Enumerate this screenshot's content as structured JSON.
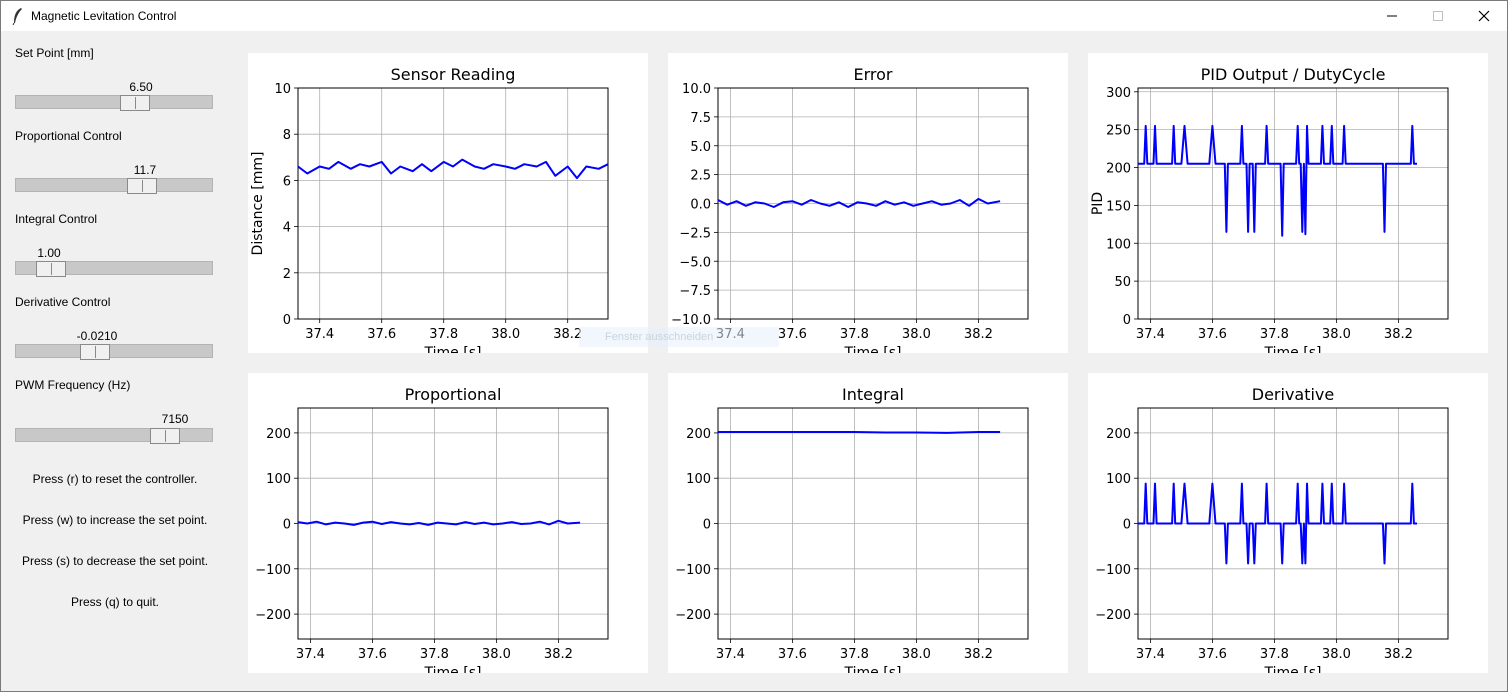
{
  "window": {
    "title": "Magnetic Levitation Control",
    "app_icon": "feather-icon",
    "controls": [
      "minimize-icon",
      "maximize-icon",
      "close-icon"
    ]
  },
  "sliders": [
    {
      "label": "Set Point [mm]",
      "value": "6.50",
      "fraction": 0.62
    },
    {
      "label": "Proportional Control",
      "value": "11.7",
      "fraction": 0.66
    },
    {
      "label": "Integral Control",
      "value": "1.00",
      "fraction": 0.12
    },
    {
      "label": "Derivative Control",
      "value": "-0.0210",
      "fraction": 0.38
    },
    {
      "label": "PWM Frequency (Hz)",
      "value": "7150",
      "fraction": 0.8
    }
  ],
  "hints": [
    "Press (r) to reset the controller.",
    "Press (w) to increase the set point.",
    "Press (s) to decrease the set point.",
    "Press (q) to quit."
  ],
  "tooltip": "Fenster ausschneiden",
  "colors": {
    "line": "#0000ff",
    "grid": "#b0b0b0",
    "background": "#f0f0f0"
  },
  "chart_data": [
    {
      "type": "line",
      "title": "Sensor Reading",
      "xlabel": "Time [s]",
      "ylabel": "Distance [mm]",
      "xlim": [
        37.33,
        38.33
      ],
      "ylim": [
        0,
        10
      ],
      "xticks": [
        37.4,
        37.6,
        37.8,
        38.0,
        38.2
      ],
      "xtick_labels": [
        "37.4",
        "37.6",
        "37.8",
        "38.0",
        "38.2"
      ],
      "yticks": [
        0,
        2,
        4,
        6,
        8,
        10
      ],
      "ytick_labels": [
        "0",
        "2",
        "4",
        "6",
        "8",
        "10"
      ],
      "grid": true,
      "series": [
        {
          "x": [
            37.33,
            37.36,
            37.4,
            37.43,
            37.46,
            37.5,
            37.53,
            37.56,
            37.6,
            37.63,
            37.66,
            37.7,
            37.73,
            37.76,
            37.8,
            37.83,
            37.86,
            37.9,
            37.93,
            37.96,
            38.0,
            38.03,
            38.06,
            38.1,
            38.13,
            38.16,
            38.2,
            38.23,
            38.26,
            38.3,
            38.33
          ],
          "y": [
            6.6,
            6.3,
            6.6,
            6.5,
            6.8,
            6.5,
            6.7,
            6.6,
            6.8,
            6.3,
            6.6,
            6.4,
            6.7,
            6.4,
            6.8,
            6.6,
            6.9,
            6.6,
            6.5,
            6.7,
            6.6,
            6.5,
            6.7,
            6.6,
            6.8,
            6.2,
            6.6,
            6.1,
            6.6,
            6.5,
            6.7
          ]
        }
      ]
    },
    {
      "type": "line",
      "title": "Error",
      "xlabel": "Time [s]",
      "ylabel": "",
      "xlim": [
        37.36,
        38.36
      ],
      "ylim": [
        -10,
        10
      ],
      "xticks": [
        37.4,
        37.6,
        37.8,
        38.0,
        38.2
      ],
      "xtick_labels": [
        "37.4",
        "37.6",
        "37.8",
        "38.0",
        "38.2"
      ],
      "yticks": [
        -10,
        -7.5,
        -5,
        -2.5,
        0,
        2.5,
        5,
        7.5,
        10
      ],
      "ytick_labels": [
        "−10.0",
        "−7.5",
        "−5.0",
        "−2.5",
        "0.0",
        "2.5",
        "5.0",
        "7.5",
        "10.0"
      ],
      "grid": true,
      "series": [
        {
          "x": [
            37.36,
            37.39,
            37.42,
            37.45,
            37.48,
            37.51,
            37.54,
            37.57,
            37.6,
            37.63,
            37.66,
            37.69,
            37.72,
            37.75,
            37.78,
            37.81,
            37.84,
            37.87,
            37.9,
            37.93,
            37.96,
            37.99,
            38.02,
            38.05,
            38.08,
            38.11,
            38.14,
            38.17,
            38.2,
            38.23,
            38.27
          ],
          "y": [
            0.3,
            -0.1,
            0.2,
            -0.2,
            0.1,
            0.0,
            -0.3,
            0.1,
            0.2,
            -0.1,
            0.3,
            0.0,
            -0.2,
            0.1,
            -0.3,
            0.1,
            0.0,
            -0.2,
            0.2,
            -0.1,
            0.1,
            -0.2,
            0.0,
            0.2,
            -0.1,
            0.0,
            0.3,
            -0.2,
            0.4,
            0.0,
            0.2
          ]
        }
      ]
    },
    {
      "type": "line",
      "title": "PID Output / DutyCycle",
      "xlabel": "Time [s]",
      "ylabel": "PID",
      "xlim": [
        37.36,
        38.36
      ],
      "ylim": [
        0,
        305
      ],
      "xticks": [
        37.4,
        37.6,
        37.8,
        38.0,
        38.2
      ],
      "xtick_labels": [
        "37.4",
        "37.6",
        "37.8",
        "38.0",
        "38.2"
      ],
      "yticks": [
        0,
        50,
        100,
        150,
        200,
        250,
        300
      ],
      "ytick_labels": [
        "0",
        "50",
        "100",
        "150",
        "200",
        "250",
        "300"
      ],
      "grid": true,
      "series": [
        {
          "x": [
            37.36,
            37.38,
            37.385,
            37.39,
            37.41,
            37.415,
            37.42,
            37.47,
            37.475,
            37.48,
            37.5,
            37.51,
            37.52,
            37.53,
            37.59,
            37.6,
            37.61,
            37.64,
            37.645,
            37.65,
            37.69,
            37.695,
            37.7,
            37.71,
            37.715,
            37.72,
            37.73,
            37.735,
            37.74,
            37.77,
            37.775,
            37.78,
            37.82,
            37.825,
            37.83,
            37.87,
            37.875,
            37.88,
            37.885,
            37.89,
            37.895,
            37.9,
            37.905,
            37.91,
            37.95,
            37.955,
            37.96,
            37.98,
            37.985,
            37.99,
            38.02,
            38.025,
            38.03,
            38.1,
            38.15,
            38.155,
            38.16,
            38.24,
            38.245,
            38.25,
            38.26
          ],
          "y": [
            205,
            205,
            255,
            205,
            205,
            255,
            205,
            205,
            255,
            205,
            205,
            255,
            205,
            205,
            205,
            255,
            205,
            205,
            115,
            205,
            205,
            255,
            205,
            205,
            115,
            205,
            205,
            115,
            205,
            205,
            255,
            205,
            205,
            110,
            205,
            205,
            255,
            205,
            205,
            115,
            205,
            112,
            255,
            205,
            205,
            255,
            205,
            205,
            255,
            205,
            205,
            255,
            205,
            205,
            205,
            115,
            205,
            205,
            255,
            205,
            205
          ]
        }
      ]
    },
    {
      "type": "line",
      "title": "Proportional",
      "xlabel": "Time [s]",
      "ylabel": "",
      "xlim": [
        37.36,
        38.36
      ],
      "ylim": [
        -255,
        255
      ],
      "xticks": [
        37.4,
        37.6,
        37.8,
        38.0,
        38.2
      ],
      "xtick_labels": [
        "37.4",
        "37.6",
        "37.8",
        "38.0",
        "38.2"
      ],
      "yticks": [
        -200,
        -100,
        0,
        100,
        200
      ],
      "ytick_labels": [
        "−200",
        "−100",
        "0",
        "100",
        "200"
      ],
      "grid": true,
      "series": [
        {
          "x": [
            37.36,
            37.39,
            37.42,
            37.45,
            37.48,
            37.51,
            37.54,
            37.57,
            37.6,
            37.63,
            37.66,
            37.69,
            37.72,
            37.75,
            37.78,
            37.81,
            37.84,
            37.87,
            37.9,
            37.93,
            37.96,
            37.99,
            38.02,
            38.05,
            38.08,
            38.11,
            38.14,
            38.17,
            38.2,
            38.23,
            38.27
          ],
          "y": [
            3,
            0,
            4,
            -2,
            2,
            0,
            -3,
            2,
            4,
            -1,
            3,
            0,
            -2,
            1,
            -3,
            2,
            0,
            -2,
            3,
            -1,
            2,
            -2,
            0,
            3,
            -1,
            0,
            4,
            -2,
            6,
            0,
            2
          ]
        }
      ]
    },
    {
      "type": "line",
      "title": "Integral",
      "xlabel": "Time [s]",
      "ylabel": "",
      "xlim": [
        37.36,
        38.36
      ],
      "ylim": [
        -255,
        255
      ],
      "xticks": [
        37.4,
        37.6,
        37.8,
        38.0,
        38.2
      ],
      "xtick_labels": [
        "37.4",
        "37.6",
        "37.8",
        "38.0",
        "38.2"
      ],
      "yticks": [
        -200,
        -100,
        0,
        100,
        200
      ],
      "ytick_labels": [
        "−200",
        "−100",
        "0",
        "100",
        "200"
      ],
      "grid": true,
      "series": [
        {
          "x": [
            37.36,
            37.5,
            37.6,
            37.7,
            37.8,
            37.9,
            38.0,
            38.1,
            38.2,
            38.27
          ],
          "y": [
            202,
            202,
            202,
            202,
            202,
            201,
            201,
            200,
            202,
            202
          ]
        }
      ]
    },
    {
      "type": "line",
      "title": "Derivative",
      "xlabel": "Time [s]",
      "ylabel": "",
      "xlim": [
        37.36,
        38.36
      ],
      "ylim": [
        -255,
        255
      ],
      "xticks": [
        37.4,
        37.6,
        37.8,
        38.0,
        38.2
      ],
      "xtick_labels": [
        "37.4",
        "37.6",
        "37.8",
        "38.0",
        "38.2"
      ],
      "yticks": [
        -200,
        -100,
        0,
        100,
        200
      ],
      "ytick_labels": [
        "−200",
        "−100",
        "0",
        "100",
        "200"
      ],
      "grid": true,
      "series": [
        {
          "x": [
            37.36,
            37.38,
            37.385,
            37.39,
            37.41,
            37.415,
            37.42,
            37.47,
            37.475,
            37.48,
            37.5,
            37.51,
            37.52,
            37.53,
            37.59,
            37.6,
            37.61,
            37.64,
            37.645,
            37.65,
            37.69,
            37.695,
            37.7,
            37.71,
            37.715,
            37.72,
            37.73,
            37.735,
            37.74,
            37.77,
            37.775,
            37.78,
            37.82,
            37.825,
            37.83,
            37.87,
            37.875,
            37.88,
            37.885,
            37.89,
            37.895,
            37.9,
            37.905,
            37.91,
            37.95,
            37.955,
            37.96,
            37.98,
            37.985,
            37.99,
            38.02,
            38.025,
            38.03,
            38.1,
            38.15,
            38.155,
            38.16,
            38.24,
            38.245,
            38.25,
            38.26
          ],
          "y": [
            0,
            0,
            88,
            0,
            0,
            88,
            0,
            0,
            88,
            0,
            0,
            88,
            0,
            0,
            0,
            88,
            0,
            0,
            -88,
            0,
            0,
            88,
            0,
            0,
            -88,
            0,
            0,
            -88,
            0,
            0,
            88,
            0,
            0,
            -88,
            0,
            0,
            88,
            0,
            0,
            -88,
            0,
            -88,
            88,
            0,
            0,
            88,
            0,
            0,
            88,
            0,
            0,
            88,
            0,
            0,
            0,
            -88,
            0,
            0,
            88,
            0,
            0
          ]
        }
      ]
    }
  ]
}
